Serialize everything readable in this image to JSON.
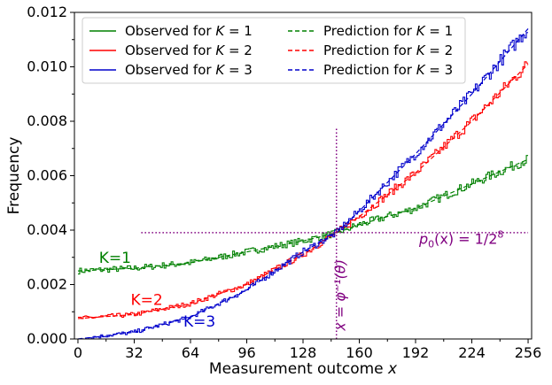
{
  "chart_data": {
    "type": "line",
    "xlabel": "Measurement outcome x",
    "ylabel": "Frequency",
    "xlim": [
      -2,
      258
    ],
    "ylim": [
      0,
      0.012
    ],
    "xticks": [
      0,
      32,
      64,
      96,
      128,
      160,
      192,
      224,
      256
    ],
    "yticks": [
      0.0,
      0.002,
      0.004,
      0.006,
      0.008,
      0.01,
      0.012
    ],
    "ytick_labels": [
      "0.000",
      "0.002",
      "0.004",
      "0.006",
      "0.008",
      "0.010",
      "0.012"
    ],
    "legend_position": "top-left",
    "legend": [
      {
        "label_prefix": "Observed for ",
        "k_var": "K",
        "label_suffix": " = 1",
        "color": "#008000",
        "dash": "solid"
      },
      {
        "label_prefix": "Observed for ",
        "k_var": "K",
        "label_suffix": " = 2",
        "color": "#ff0000",
        "dash": "solid"
      },
      {
        "label_prefix": "Observed for ",
        "k_var": "K",
        "label_suffix": " = 3",
        "color": "#0000cc",
        "dash": "solid"
      },
      {
        "label_prefix": "Prediction for ",
        "k_var": "K",
        "label_suffix": " = 1",
        "color": "#008000",
        "dash": "dashed"
      },
      {
        "label_prefix": "Prediction for ",
        "k_var": "K",
        "label_suffix": " = 2",
        "color": "#ff0000",
        "dash": "dashed"
      },
      {
        "label_prefix": "Prediction for ",
        "k_var": "K",
        "label_suffix": " = 3",
        "color": "#0000cc",
        "dash": "dashed"
      }
    ],
    "series": [
      {
        "name": "K=1",
        "color": "#008000",
        "x": [
          0,
          32,
          64,
          96,
          128,
          147,
          160,
          192,
          224,
          256
        ],
        "y": [
          0.0025,
          0.0026,
          0.0028,
          0.0032,
          0.0036,
          0.0039,
          0.0042,
          0.0048,
          0.0057,
          0.0066
        ]
      },
      {
        "name": "K=2",
        "color": "#ff0000",
        "x": [
          0,
          32,
          64,
          96,
          128,
          147,
          160,
          192,
          224,
          256
        ],
        "y": [
          0.00075,
          0.0009,
          0.0013,
          0.002,
          0.0031,
          0.0039,
          0.0045,
          0.0061,
          0.008,
          0.0101
        ]
      },
      {
        "name": "K=3",
        "color": "#0000cc",
        "x": [
          0,
          32,
          64,
          96,
          128,
          147,
          160,
          192,
          224,
          256
        ],
        "y": [
          0.0,
          0.00025,
          0.0008,
          0.0018,
          0.0032,
          0.0039,
          0.0047,
          0.0068,
          0.009,
          0.0114
        ]
      }
    ],
    "curve_labels": [
      {
        "text": "K=1",
        "color": "#008000",
        "x": 12,
        "y": 0.0028
      },
      {
        "text": "K=2",
        "color": "#ff0000",
        "x": 30,
        "y": 0.00125
      },
      {
        "text": "K=3",
        "color": "#0000cc",
        "x": 60,
        "y": 0.00045
      }
    ],
    "annotations": {
      "hline": {
        "y": 0.00390625,
        "x_start": 36,
        "x_end": 256,
        "color": "#800080",
        "label_lhs": "p",
        "label_sub": "0",
        "label_mid": "(x) = 1/2",
        "label_sup": "8",
        "label_x": 194,
        "label_y": 0.0035
      },
      "vline": {
        "x": 147,
        "y_end": 0.0078,
        "color": "#800080",
        "label": "x = φ⁻¹(θ)",
        "label_x": 152,
        "label_y": 0.0003
      }
    }
  }
}
